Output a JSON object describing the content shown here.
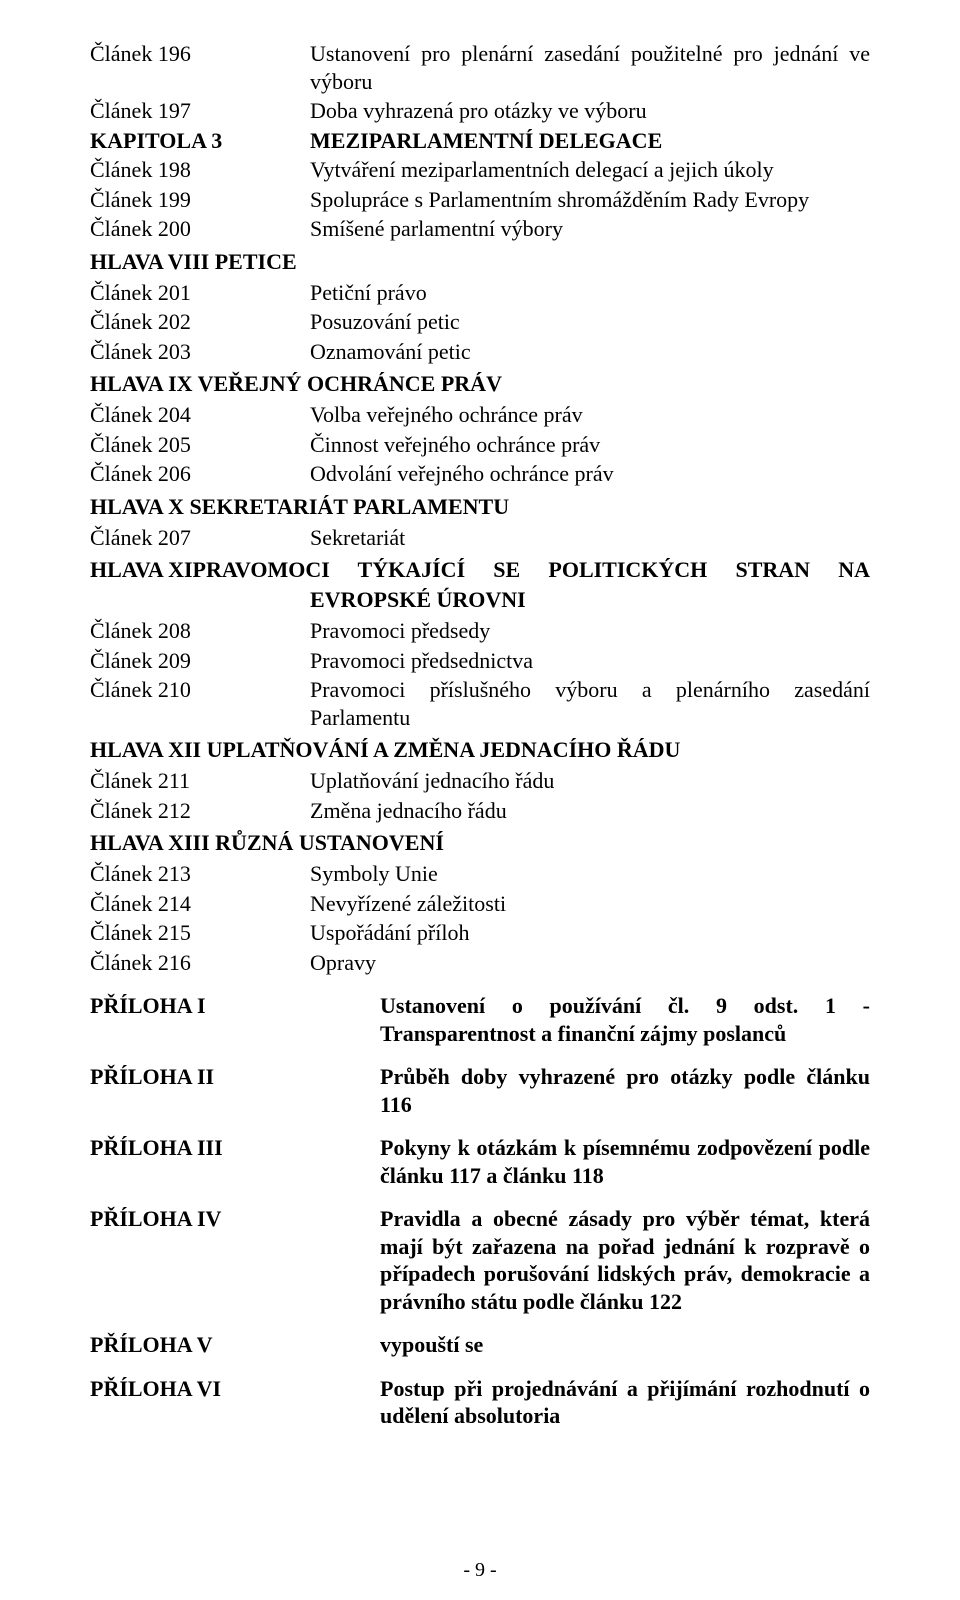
{
  "rows1": [
    {
      "label": "Článek  196",
      "desc": "Ustanovení pro plenární zasedání použitelné pro jednání ve výboru",
      "just": true
    },
    {
      "label": "Článek  197",
      "desc": "Doba vyhrazená pro otázky ve výboru"
    }
  ],
  "kapitola3": {
    "label": "KAPITOLA  3",
    "desc": "MEZIPARLAMENTNÍ DELEGACE"
  },
  "rows2": [
    {
      "label": "Článek  198",
      "desc": "Vytváření meziparlamentních delegací a jejich úkoly"
    },
    {
      "label": "Článek  199",
      "desc": "Spolupráce s Parlamentním shromážděním Rady Evropy"
    },
    {
      "label": "Článek  200",
      "desc": "Smíšené parlamentní výbory"
    }
  ],
  "hlava8": "HLAVA  VIII  PETICE",
  "rows3": [
    {
      "label": "Článek  201",
      "desc": "Petiční právo"
    },
    {
      "label": "Článek  202",
      "desc": "Posuzování petic"
    },
    {
      "label": "Článek  203",
      "desc": "Oznamování petic"
    }
  ],
  "hlava9": "HLAVA  IX   VEŘEJNÝ OCHRÁNCE PRÁV",
  "rows4": [
    {
      "label": "Článek  204",
      "desc": "Volba veřejného ochránce práv"
    },
    {
      "label": "Článek  205",
      "desc": "Činnost veřejného ochránce práv"
    },
    {
      "label": "Článek  206",
      "desc": "Odvolání veřejného ochránce práv"
    }
  ],
  "hlava10": "HLAVA  X    SEKRETARIÁT PARLAMENTU",
  "rows5": [
    {
      "label": "Článek  207",
      "desc": "Sekretariát"
    }
  ],
  "hlava11_lbl": "HLAVA  XI ",
  "hlava11_l1": "PRAVOMOCI TÝKAJÍCÍ SE POLITICKÝCH STRAN NA",
  "hlava11_l2": "EVROPSKÉ ÚROVNI",
  "rows6": [
    {
      "label": "Článek  208",
      "desc": "Pravomoci předsedy"
    },
    {
      "label": "Článek  209",
      "desc": "Pravomoci předsednictva"
    },
    {
      "label": "Článek  210",
      "desc": "Pravomoci příslušného výboru a plenárního zasedání Parlamentu",
      "just": true
    }
  ],
  "hlava12": "HLAVA  XII   UPLATŇOVÁNÍ A ZMĚNA JEDNACÍHO ŘÁDU",
  "rows7": [
    {
      "label": "Článek  211",
      "desc": "Uplatňování jednacího řádu"
    },
    {
      "label": "Článek  212",
      "desc": "Změna jednacího řádu"
    }
  ],
  "hlava13": "HLAVA  XIII  RŮZNÁ USTANOVENÍ",
  "rows8": [
    {
      "label": "Článek  213",
      "desc": "Symboly Unie"
    },
    {
      "label": "Článek  214",
      "desc": "Nevyřízené záležitosti"
    },
    {
      "label": "Článek  215",
      "desc": "Uspořádání příloh"
    },
    {
      "label": "Článek  216",
      "desc": "Opravy"
    }
  ],
  "attachments": [
    {
      "label": "PŘÍLOHA  I",
      "desc": "Ustanovení o používání čl. 9 odst. 1 - Transparentnost a finanční zájmy poslanců"
    },
    {
      "label": "PŘÍLOHA  II",
      "desc": "Průběh doby vyhrazené pro otázky podle článku 116"
    },
    {
      "label": "PŘÍLOHA  III",
      "desc": "Pokyny k otázkám k písemnému zodpovězení podle článku 117 a článku 118"
    },
    {
      "label": "PŘÍLOHA  IV",
      "desc": "Pravidla a obecné zásady pro výběr témat, která mají být zařazena na pořad jednání k rozpravě o případech porušování lidských práv, demokracie a právního státu podle článku 122"
    },
    {
      "label": "PŘÍLOHA  V",
      "desc": "vypouští se"
    },
    {
      "label": "PŘÍLOHA  VI",
      "desc": "Postup při projednávání a přijímání rozhodnutí o udělení absolutoria"
    }
  ],
  "pagenum": "- 9 -"
}
